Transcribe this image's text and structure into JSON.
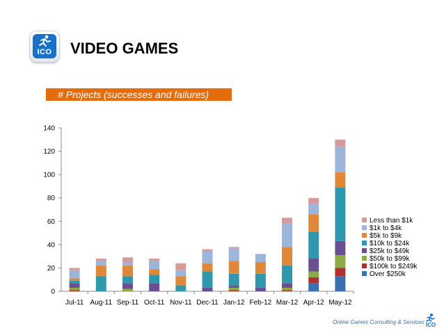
{
  "header": {
    "title": "VIDEO GAMES",
    "logo_text": "ICO"
  },
  "footer": {
    "text": "Online Games Consulting & Services",
    "logo_text": "ICO"
  },
  "chart_data": {
    "type": "bar",
    "stacked": true,
    "title": "# Projects (successes and failures)",
    "xlabel": "",
    "ylabel": "",
    "ylim": [
      0,
      140
    ],
    "yticks": [
      0,
      20,
      40,
      60,
      80,
      100,
      120,
      140
    ],
    "categories": [
      "Jul-11",
      "Aug-11",
      "Sep-11",
      "Oct-11",
      "Nov-11",
      "Dec-11",
      "Jan-12",
      "Feb-12",
      "Mar-12",
      "Apr-12",
      "May-12"
    ],
    "legend_position": "right",
    "series": [
      {
        "name": "Over $250k",
        "color": "#3a6fb0",
        "values": [
          0,
          0,
          0,
          0,
          0,
          0,
          0,
          0,
          0,
          7,
          13
        ]
      },
      {
        "name": "$100k to $249k",
        "color": "#b0302c",
        "values": [
          1,
          0,
          0,
          0,
          0,
          0,
          1,
          0,
          1,
          5,
          7
        ]
      },
      {
        "name": "$50k to $99k",
        "color": "#8bab46",
        "values": [
          2,
          0,
          2,
          0,
          0,
          0,
          2,
          0,
          2,
          5,
          11
        ]
      },
      {
        "name": "$25k to $49k",
        "color": "#6b4f91",
        "values": [
          4,
          0,
          5,
          7,
          0,
          3,
          2,
          3,
          4,
          11,
          12
        ]
      },
      {
        "name": "$10k to $24k",
        "color": "#2f98ad",
        "values": [
          2,
          13,
          6,
          7,
          5,
          14,
          10,
          12,
          15,
          23,
          46
        ]
      },
      {
        "name": "$5k to $9k",
        "color": "#e0883a",
        "values": [
          2,
          9,
          9,
          5,
          8,
          7,
          11,
          10,
          16,
          15,
          13
        ]
      },
      {
        "name": "$1k to $4k",
        "color": "#9cb5db",
        "values": [
          7,
          4,
          3,
          7,
          5,
          10,
          11,
          7,
          20,
          9,
          22
        ]
      },
      {
        "name": "Less than $1k",
        "color": "#d59b9b",
        "values": [
          2,
          2,
          4,
          2,
          6,
          2,
          1,
          0,
          5,
          5,
          6
        ]
      }
    ]
  }
}
